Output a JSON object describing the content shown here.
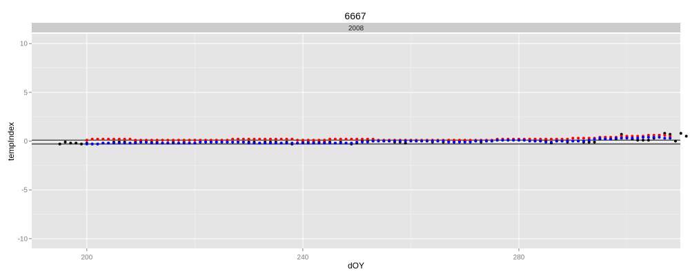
{
  "chart_data": {
    "type": "scatter",
    "title": "6667",
    "facet_label": "2008",
    "xlabel": "dOY",
    "ylabel": "tempIndex",
    "xlim": [
      189.8,
      309.9
    ],
    "ylim": [
      -11,
      11
    ],
    "x_ticks": [
      200,
      240,
      280
    ],
    "y_ticks": [
      -10,
      -5,
      0,
      5,
      10
    ],
    "hlines": [
      0.1,
      -0.3
    ],
    "colors": {
      "panel_bg": "#e5e5e5",
      "grid": "#ffffff",
      "strip_bg": "#cccccc",
      "black_series": "#000000",
      "red_series": "#ff0000",
      "blue_series": "#0000ff"
    },
    "series": [
      {
        "color": "#000000",
        "x": [
          195,
          196,
          197,
          198,
          199,
          200,
          201,
          202,
          203,
          204,
          205,
          206,
          207,
          208,
          209,
          210,
          211,
          212,
          213,
          214,
          215,
          216,
          217,
          218,
          219,
          220,
          221,
          222,
          223,
          224,
          225,
          226,
          227,
          228,
          229,
          230,
          231,
          232,
          233,
          234,
          235,
          236,
          237,
          238,
          239,
          240,
          241,
          242,
          243,
          244,
          245,
          246,
          247,
          248,
          249,
          250,
          251,
          252,
          253,
          254,
          255,
          256,
          257,
          258,
          259,
          260,
          261,
          262,
          263,
          264,
          265,
          266,
          267,
          268,
          269,
          270,
          271,
          272,
          273,
          274,
          275,
          276,
          277,
          278,
          279,
          280,
          281,
          282,
          283,
          284,
          285,
          286,
          287,
          288,
          289,
          290,
          291,
          292,
          293,
          294,
          295,
          296,
          297,
          298,
          299,
          300,
          301,
          302,
          303,
          304,
          305,
          306,
          307,
          308,
          309,
          310,
          311,
          312
        ],
        "y": [
          -0.3,
          -0.1,
          -0.2,
          -0.2,
          -0.3,
          -0.2,
          -0.3,
          -0.3,
          -0.2,
          -0.2,
          -0.1,
          -0.1,
          -0.1,
          -0.2,
          -0.1,
          -0.1,
          -0.1,
          -0.1,
          -0.1,
          -0.2,
          -0.2,
          -0.1,
          -0.2,
          -0.1,
          -0.2,
          -0.2,
          -0.1,
          -0.1,
          -0.1,
          -0.1,
          -0.1,
          -0.1,
          -0.1,
          -0.1,
          -0.1,
          -0.1,
          -0.1,
          -0.2,
          -0.1,
          -0.1,
          -0.1,
          -0.2,
          -0.1,
          -0.3,
          -0.2,
          -0.1,
          -0.1,
          -0.1,
          -0.1,
          -0.1,
          -0.1,
          -0.2,
          -0.1,
          -0.2,
          -0.3,
          -0.2,
          0.0,
          0.0,
          0.0,
          0.0,
          0.0,
          0.0,
          -0.1,
          -0.1,
          -0.2,
          0.0,
          0.0,
          0.0,
          0.0,
          -0.1,
          0.0,
          -0.1,
          0.0,
          -0.1,
          0.0,
          0.0,
          0.0,
          0.0,
          -0.1,
          0.0,
          0.0,
          0.1,
          0.1,
          0.1,
          0.1,
          0.1,
          0.1,
          0.1,
          0.0,
          0.0,
          0.0,
          -0.2,
          0.0,
          0.0,
          -0.1,
          0.0,
          0.0,
          -0.1,
          -0.1,
          -0.1,
          0.2,
          0.3,
          0.2,
          0.2,
          0.7,
          0.4,
          0.2,
          0.1,
          0.1,
          0.1,
          0.3,
          0.6,
          0.8,
          0.7,
          0.0,
          0.8,
          0.5,
          0.5
        ]
      },
      {
        "color": "#ff0000",
        "x": [
          200,
          201,
          202,
          203,
          204,
          205,
          206,
          207,
          208,
          209,
          210,
          211,
          212,
          213,
          214,
          215,
          216,
          217,
          218,
          219,
          220,
          221,
          222,
          223,
          224,
          225,
          226,
          227,
          228,
          229,
          230,
          231,
          232,
          233,
          234,
          235,
          236,
          237,
          238,
          239,
          240,
          241,
          242,
          243,
          244,
          245,
          246,
          247,
          248,
          249,
          250,
          251,
          252,
          253,
          254,
          255,
          256,
          257,
          258,
          259,
          260,
          261,
          262,
          263,
          264,
          265,
          266,
          267,
          268,
          269,
          270,
          271,
          272,
          273,
          274,
          275,
          276,
          277,
          278,
          279,
          280,
          281,
          282,
          283,
          284,
          285,
          286,
          287,
          288,
          289,
          290,
          291,
          292,
          293,
          294,
          295,
          296,
          297,
          298,
          299,
          300,
          301,
          302,
          303,
          304,
          305,
          306,
          307,
          308
        ],
        "y": [
          0.1,
          0.2,
          0.2,
          0.2,
          0.2,
          0.2,
          0.2,
          0.2,
          0.2,
          0.1,
          0.1,
          0.1,
          0.1,
          0.1,
          0.1,
          0.1,
          0.1,
          0.1,
          0.1,
          0.1,
          0.1,
          0.1,
          0.1,
          0.1,
          0.1,
          0.1,
          0.1,
          0.2,
          0.2,
          0.2,
          0.2,
          0.2,
          0.2,
          0.2,
          0.2,
          0.2,
          0.2,
          0.2,
          0.2,
          0.1,
          0.1,
          0.1,
          0.1,
          0.1,
          0.1,
          0.2,
          0.2,
          0.2,
          0.2,
          0.2,
          0.2,
          0.2,
          0.2,
          0.2,
          0.1,
          0.1,
          0.1,
          0.1,
          0.1,
          0.1,
          0.1,
          0.1,
          0.1,
          0.1,
          0.1,
          0.1,
          0.1,
          0.1,
          0.1,
          0.1,
          0.1,
          0.1,
          0.1,
          0.1,
          0.1,
          0.1,
          0.2,
          0.2,
          0.2,
          0.2,
          0.2,
          0.2,
          0.2,
          0.2,
          0.2,
          0.2,
          0.2,
          0.2,
          0.2,
          0.2,
          0.3,
          0.3,
          0.3,
          0.3,
          0.3,
          0.4,
          0.4,
          0.4,
          0.4,
          0.5,
          0.5,
          0.5,
          0.5,
          0.5,
          0.6,
          0.6,
          0.6,
          0.6,
          0.5
        ]
      },
      {
        "color": "#0000ff",
        "x": [
          200,
          201,
          202,
          203,
          204,
          205,
          206,
          207,
          208,
          209,
          210,
          211,
          212,
          213,
          214,
          215,
          216,
          217,
          218,
          219,
          220,
          221,
          222,
          223,
          224,
          225,
          226,
          227,
          228,
          229,
          230,
          231,
          232,
          233,
          234,
          235,
          236,
          237,
          238,
          239,
          240,
          241,
          242,
          243,
          244,
          245,
          246,
          247,
          248,
          249,
          250,
          251,
          252,
          253,
          254,
          255,
          256,
          257,
          258,
          259,
          260,
          261,
          262,
          263,
          264,
          265,
          266,
          267,
          268,
          269,
          270,
          271,
          272,
          273,
          274,
          275,
          276,
          277,
          278,
          279,
          280,
          281,
          282,
          283,
          284,
          285,
          286,
          287,
          288,
          289,
          290,
          291,
          292,
          293,
          294,
          295,
          296,
          297,
          298,
          299,
          300,
          301,
          302,
          303,
          304,
          305,
          306,
          307,
          308
        ],
        "y": [
          -0.3,
          -0.3,
          -0.3,
          -0.2,
          -0.2,
          -0.2,
          -0.2,
          -0.2,
          -0.2,
          -0.2,
          -0.1,
          -0.1,
          -0.2,
          -0.2,
          -0.2,
          -0.2,
          -0.2,
          -0.2,
          -0.2,
          -0.2,
          -0.2,
          -0.1,
          -0.1,
          -0.1,
          -0.1,
          -0.1,
          -0.1,
          -0.1,
          -0.1,
          -0.1,
          -0.2,
          -0.2,
          -0.2,
          -0.2,
          -0.2,
          -0.2,
          -0.2,
          -0.2,
          -0.2,
          -0.2,
          -0.2,
          -0.2,
          -0.2,
          -0.2,
          -0.2,
          -0.2,
          -0.2,
          -0.2,
          -0.2,
          -0.2,
          -0.1,
          -0.1,
          -0.1,
          0.0,
          0.0,
          0.0,
          0.0,
          0.0,
          0.0,
          0.0,
          0.0,
          0.0,
          0.0,
          0.0,
          0.0,
          0.0,
          0.0,
          -0.1,
          -0.1,
          -0.1,
          -0.1,
          -0.1,
          0.0,
          0.0,
          0.0,
          0.0,
          0.1,
          0.1,
          0.1,
          0.1,
          0.1,
          0.1,
          0.0,
          0.0,
          0.0,
          -0.1,
          -0.1,
          0.0,
          0.0,
          0.0,
          0.0,
          0.0,
          0.0,
          0.1,
          0.2,
          0.3,
          0.2,
          0.2,
          0.3,
          0.3,
          0.3,
          0.3,
          0.3,
          0.4,
          0.4,
          0.4,
          0.4,
          0.3,
          0.3
        ]
      }
    ]
  }
}
